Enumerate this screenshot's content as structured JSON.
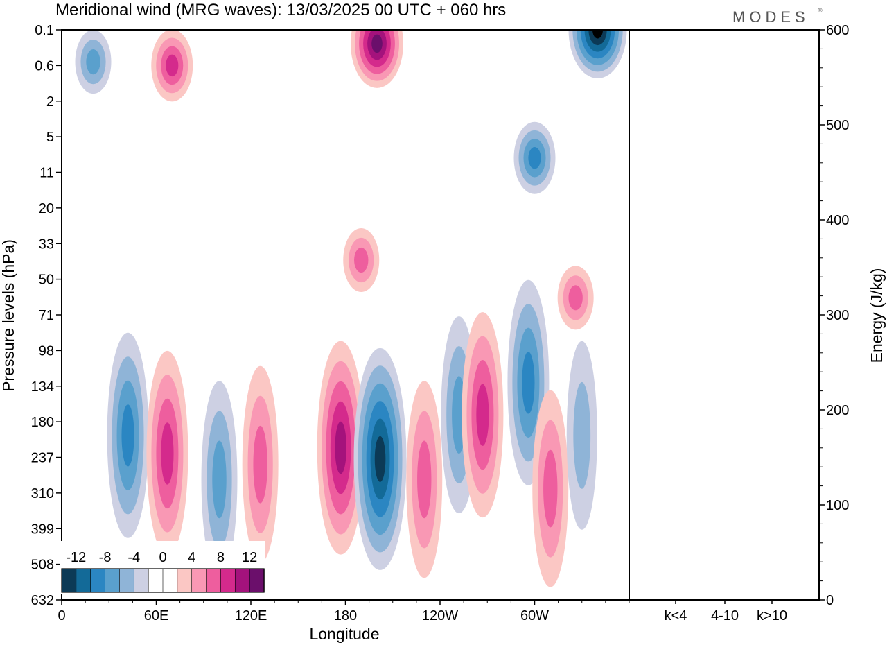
{
  "chart_data": {
    "type": "heatmap",
    "title": "Meridional wind (MRG waves):  13/03/2025  00 UTC  + 060 hrs",
    "brand": "MODES",
    "brand_mark": "©",
    "xlabel": "Longitude",
    "ylabel": "Pressure levels (hPa)",
    "x_ticks": [
      "0",
      "60E",
      "120E",
      "180",
      "120W",
      "60W"
    ],
    "x_tick_degrees": [
      0,
      60,
      120,
      180,
      240,
      300
    ],
    "xlim": [
      0,
      360
    ],
    "y_ticks": [
      "0.1",
      "0.6",
      "2",
      "5",
      "11",
      "20",
      "33",
      "50",
      "71",
      "98",
      "134",
      "180",
      "237",
      "310",
      "399",
      "508",
      "632"
    ],
    "y_scale": "log",
    "colorbar": {
      "labels": [
        "-12",
        "-8",
        "-4",
        "0",
        "4",
        "8",
        "12"
      ],
      "levels": [
        -14,
        -12,
        -10,
        -8,
        -6,
        -4,
        -2,
        0,
        2,
        4,
        6,
        8,
        10,
        12,
        14
      ],
      "colors": [
        "#0c3a56",
        "#136a98",
        "#2b86c2",
        "#5aa0cd",
        "#8fb4d7",
        "#cdd0e3",
        "#ffffff",
        "#ffffff",
        "#fbc7c4",
        "#f998b4",
        "#ee5e9e",
        "#d42a8c",
        "#a4127c",
        "#6b0f6b"
      ]
    },
    "energy_panel": {
      "ylabel": "Energy (J/kg)",
      "ylim": [
        0,
        600
      ],
      "y_ticks": [
        "0",
        "100",
        "200",
        "300",
        "400",
        "500",
        "600"
      ],
      "categories": [
        "k<4",
        "4-10",
        "k>10"
      ],
      "values": [
        0,
        1,
        0
      ]
    },
    "features": [
      {
        "lon": 42,
        "p": 200,
        "sign": "neg",
        "level": 3
      },
      {
        "lon": 67,
        "p": 230,
        "sign": "pos",
        "level": 3
      },
      {
        "lon": 100,
        "p": 280,
        "sign": "neg",
        "level": 2
      },
      {
        "lon": 126,
        "p": 250,
        "sign": "pos",
        "level": 2
      },
      {
        "lon": 177,
        "p": 220,
        "sign": "pos",
        "level": 4
      },
      {
        "lon": 202,
        "p": 240,
        "sign": "neg",
        "level": 5
      },
      {
        "lon": 230,
        "p": 280,
        "sign": "pos",
        "level": 2
      },
      {
        "lon": 252,
        "p": 170,
        "sign": "neg",
        "level": 2
      },
      {
        "lon": 267,
        "p": 170,
        "sign": "pos",
        "level": 3
      },
      {
        "lon": 296,
        "p": 130,
        "sign": "neg",
        "level": 3
      },
      {
        "lon": 310,
        "p": 300,
        "sign": "pos",
        "level": 2
      },
      {
        "lon": 330,
        "p": 200,
        "sign": "neg",
        "level": 1
      },
      {
        "lon": 326,
        "p": 60,
        "sign": "pos",
        "level": 2
      },
      {
        "lon": 200,
        "p": 0.2,
        "sign": "pos",
        "level": 5
      },
      {
        "lon": 340,
        "p": 0.1,
        "sign": "neg",
        "level": 6
      },
      {
        "lon": 70,
        "p": 0.6,
        "sign": "pos",
        "level": 3
      },
      {
        "lon": 20,
        "p": 0.5,
        "sign": "neg",
        "level": 2
      },
      {
        "lon": 300,
        "p": 8,
        "sign": "neg",
        "level": 3
      },
      {
        "lon": 190,
        "p": 40,
        "sign": "pos",
        "level": 2
      }
    ]
  }
}
